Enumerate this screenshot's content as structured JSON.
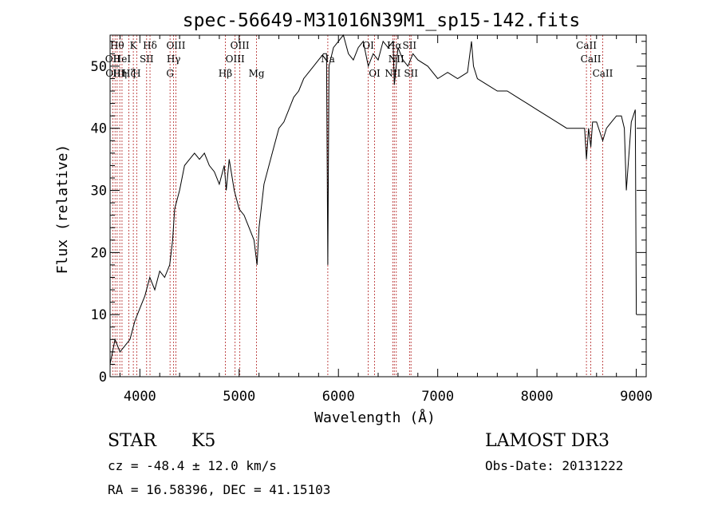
{
  "chart_data": {
    "type": "line",
    "title": "spec-56649-M31016N39M1_sp15-142.fits",
    "xlabel": "Wavelength (Å)",
    "ylabel": "Flux (relative)",
    "xlim": [
      3700,
      9100
    ],
    "ylim": [
      0,
      55
    ],
    "xticks": [
      4000,
      5000,
      6000,
      7000,
      8000,
      9000
    ],
    "yticks": [
      0,
      10,
      20,
      30,
      40,
      50
    ],
    "grid": false,
    "series": [
      {
        "x": [
          3700,
          3750,
          3800,
          3850,
          3900,
          3950,
          4000,
          4050,
          4100,
          4150,
          4200,
          4250,
          4300,
          4330,
          4350,
          4400,
          4450,
          4500,
          4550,
          4600,
          4650,
          4700,
          4750,
          4800,
          4850,
          4870,
          4900,
          4950,
          5000,
          5050,
          5100,
          5150,
          5180,
          5200,
          5250,
          5300,
          5350,
          5400,
          5450,
          5500,
          5550,
          5600,
          5650,
          5700,
          5750,
          5800,
          5850,
          5880,
          5893,
          5905,
          5950,
          6000,
          6050,
          6100,
          6150,
          6200,
          6250,
          6300,
          6350,
          6400,
          6450,
          6500,
          6550,
          6563,
          6600,
          6650,
          6700,
          6750,
          6800,
          6900,
          7000,
          7100,
          7200,
          7300,
          7340,
          7360,
          7400,
          7500,
          7600,
          7700,
          7800,
          7900,
          8000,
          8100,
          8200,
          8300,
          8400,
          8480,
          8498,
          8520,
          8542,
          8560,
          8600,
          8662,
          8700,
          8750,
          8800,
          8850,
          8880,
          8900,
          8950,
          8990,
          9000
        ],
        "y": [
          2,
          6,
          4,
          5,
          6,
          9,
          11,
          13,
          16,
          14,
          17,
          16,
          18,
          22,
          27,
          30,
          34,
          35,
          36,
          35,
          36,
          34,
          33,
          31,
          34,
          30,
          35,
          30,
          27,
          26,
          24,
          22,
          18,
          24,
          31,
          34,
          37,
          40,
          41,
          43,
          45,
          46,
          48,
          49,
          50,
          51,
          52,
          52,
          18,
          50,
          53,
          54,
          55,
          52,
          51,
          53,
          54,
          50,
          52,
          51,
          54,
          53,
          54,
          47,
          53,
          51,
          50,
          52,
          51,
          50,
          48,
          49,
          48,
          49,
          54,
          50,
          48,
          47,
          46,
          46,
          45,
          44,
          43,
          42,
          41,
          40,
          40,
          40,
          35,
          40,
          37,
          41,
          41,
          38,
          40,
          41,
          42,
          42,
          40,
          30,
          41,
          43,
          10
        ]
      }
    ],
    "lines": [
      {
        "w": 3727,
        "label": "OII",
        "row": 1
      },
      {
        "w": 3750,
        "label": "OIII",
        "row": 2
      },
      {
        "w": 3771,
        "label": "Hθ",
        "row": 0
      },
      {
        "w": 3798,
        "label": "Hη",
        "row": 2
      },
      {
        "w": 3820,
        "label": "HeI",
        "row": 1
      },
      {
        "w": 3889,
        "label": "Hζ",
        "row": 2
      },
      {
        "w": 3934,
        "label": "K",
        "row": 0
      },
      {
        "w": 3968,
        "label": "H",
        "row": 2
      },
      {
        "w": 4068,
        "label": "SII",
        "row": 1
      },
      {
        "w": 4102,
        "label": "Hδ",
        "row": 0
      },
      {
        "w": 4304,
        "label": "G",
        "row": 2
      },
      {
        "w": 4340,
        "label": "Hγ",
        "row": 1
      },
      {
        "w": 4363,
        "label": "OIII",
        "row": 0
      },
      {
        "w": 4861,
        "label": "Hβ",
        "row": 2
      },
      {
        "w": 4959,
        "label": "OIII",
        "row": 1
      },
      {
        "w": 5007,
        "label": "OIII",
        "row": 0
      },
      {
        "w": 5175,
        "label": "Mg",
        "row": 2
      },
      {
        "w": 5893,
        "label": "Na",
        "row": 1
      },
      {
        "w": 6300,
        "label": "OI",
        "row": 0
      },
      {
        "w": 6364,
        "label": "OI",
        "row": 2
      },
      {
        "w": 6548,
        "label": "NII",
        "row": 2
      },
      {
        "w": 6563,
        "label": "Hα",
        "row": 0
      },
      {
        "w": 6583,
        "label": "NII",
        "row": 1
      },
      {
        "w": 6716,
        "label": "SII",
        "row": 0
      },
      {
        "w": 6731,
        "label": "SII",
        "row": 2
      },
      {
        "w": 8498,
        "label": "CaII",
        "row": 0
      },
      {
        "w": 8542,
        "label": "CaII",
        "row": 1
      },
      {
        "w": 8662,
        "label": "CaII",
        "row": 2
      }
    ]
  },
  "info": {
    "class_label": "STAR",
    "subclass": "K5",
    "survey": "LAMOST DR3",
    "cz": "cz = -48.4 ± 12.0 km/s",
    "obs_date": "Obs-Date: 20131222",
    "radec": "RA =  16.58396, DEC =  41.15103"
  }
}
